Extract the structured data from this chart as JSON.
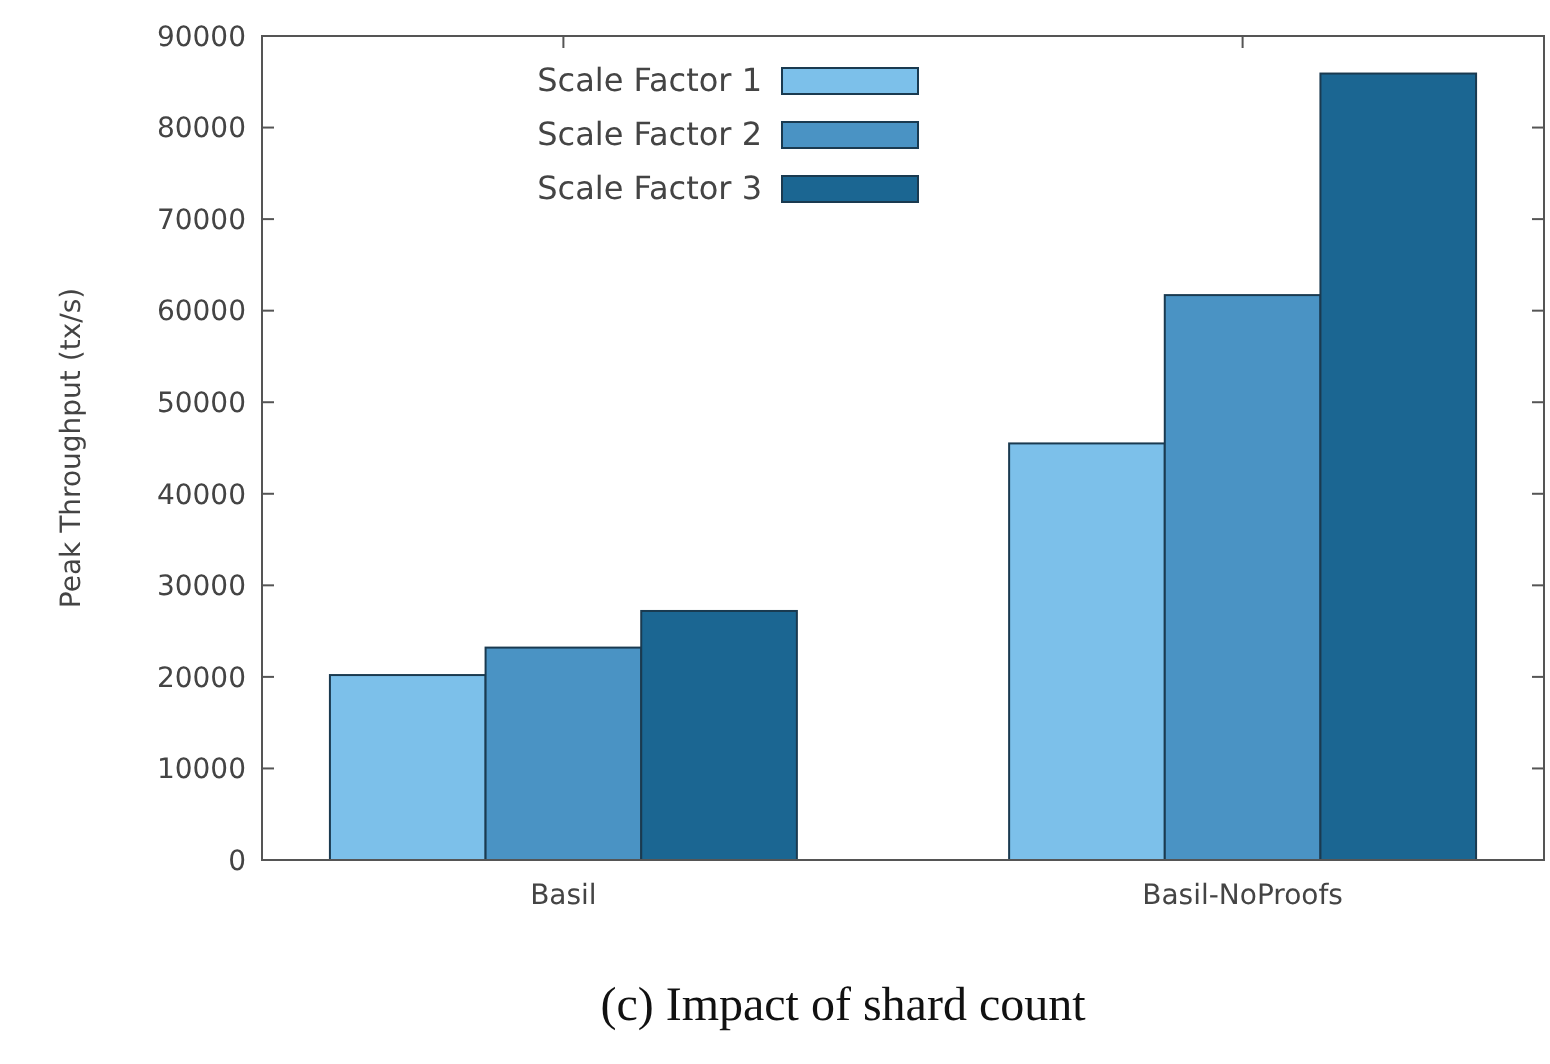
{
  "chart_data": {
    "type": "bar",
    "title": "(c) Impact of shard count",
    "ylabel": "Peak Throughput (tx/s)",
    "categories": [
      "Basil",
      "Basil-NoProofs"
    ],
    "series": [
      {
        "name": "Scale Factor 1",
        "color": "#7cc0ea",
        "values": [
          20200,
          45500
        ]
      },
      {
        "name": "Scale Factor 2",
        "color": "#4a93c4",
        "values": [
          23200,
          61700
        ]
      },
      {
        "name": "Scale Factor 3",
        "color": "#1b6692",
        "values": [
          27200,
          85900
        ]
      }
    ],
    "ylim": [
      0,
      90000
    ],
    "yticks": [
      0,
      10000,
      20000,
      30000,
      40000,
      50000,
      60000,
      70000,
      80000,
      90000
    ],
    "legend": "top left"
  }
}
